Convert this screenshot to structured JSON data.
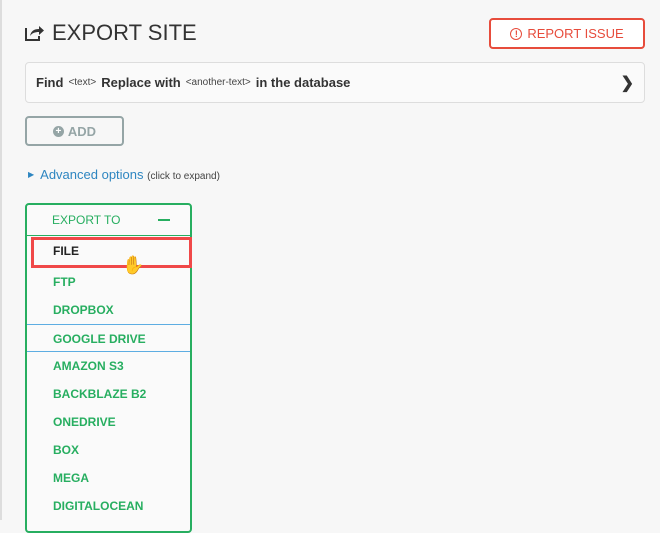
{
  "header": {
    "title": "EXPORT SITE",
    "report_label": "REPORT ISSUE"
  },
  "find_replace": {
    "find": "Find",
    "text": "<text>",
    "replace": "Replace with",
    "another": "<another-text>",
    "suffix": "in the database"
  },
  "add_label": "ADD",
  "advanced": {
    "label": "Advanced options",
    "hint": "(click to expand)"
  },
  "export": {
    "title": "EXPORT TO",
    "items": [
      "FILE",
      "FTP",
      "DROPBOX",
      "GOOGLE DRIVE",
      "AMAZON S3",
      "BACKBLAZE B2",
      "ONEDRIVE",
      "BOX",
      "MEGA",
      "DIGITALOCEAN"
    ],
    "selected": "FILE"
  },
  "colors": {
    "green": "#27ae60",
    "red": "#e74c3c",
    "blue": "#2e86c1"
  }
}
